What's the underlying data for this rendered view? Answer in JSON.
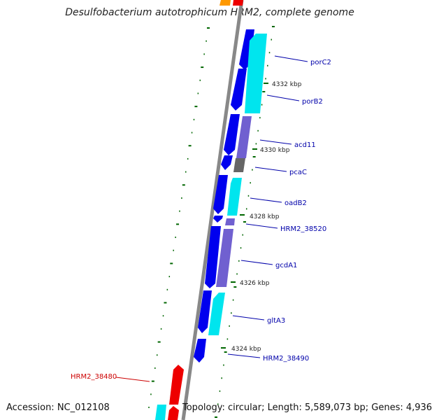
{
  "title": "Desulfobacterium autotrophicum HRM2, complete genome",
  "footer": {
    "accession": "Accession: NC_012108",
    "summary": "Topology: circular; Length: 5,589,073 bp; Genes: 4,936"
  },
  "colors": {
    "backbone": "#888888",
    "gene_blue": "#0000ee",
    "gene_cyan": "#00e5ee",
    "gene_purple": "#7060d0",
    "gene_gray": "#666666",
    "gene_red": "#ee0000",
    "gene_orange": "#ff9900",
    "tick": "#006600",
    "label_blue": "#0000aa",
    "label_red": "#cc0000"
  },
  "kbp_markers": [
    "4332 kbp",
    "4330 kbp",
    "4328 kbp",
    "4326 kbp",
    "4324 kbp"
  ],
  "gene_labels": [
    {
      "text": "porC2",
      "color": "blue"
    },
    {
      "text": "porB2",
      "color": "blue"
    },
    {
      "text": "acd11",
      "color": "blue"
    },
    {
      "text": "pcaC",
      "color": "blue"
    },
    {
      "text": "oadB2",
      "color": "blue"
    },
    {
      "text": "HRM2_38520",
      "color": "blue"
    },
    {
      "text": "gcdA1",
      "color": "blue"
    },
    {
      "text": "gltA3",
      "color": "blue"
    },
    {
      "text": "HRM2_38490",
      "color": "blue"
    },
    {
      "text": "HRM2_38480",
      "color": "red"
    }
  ]
}
